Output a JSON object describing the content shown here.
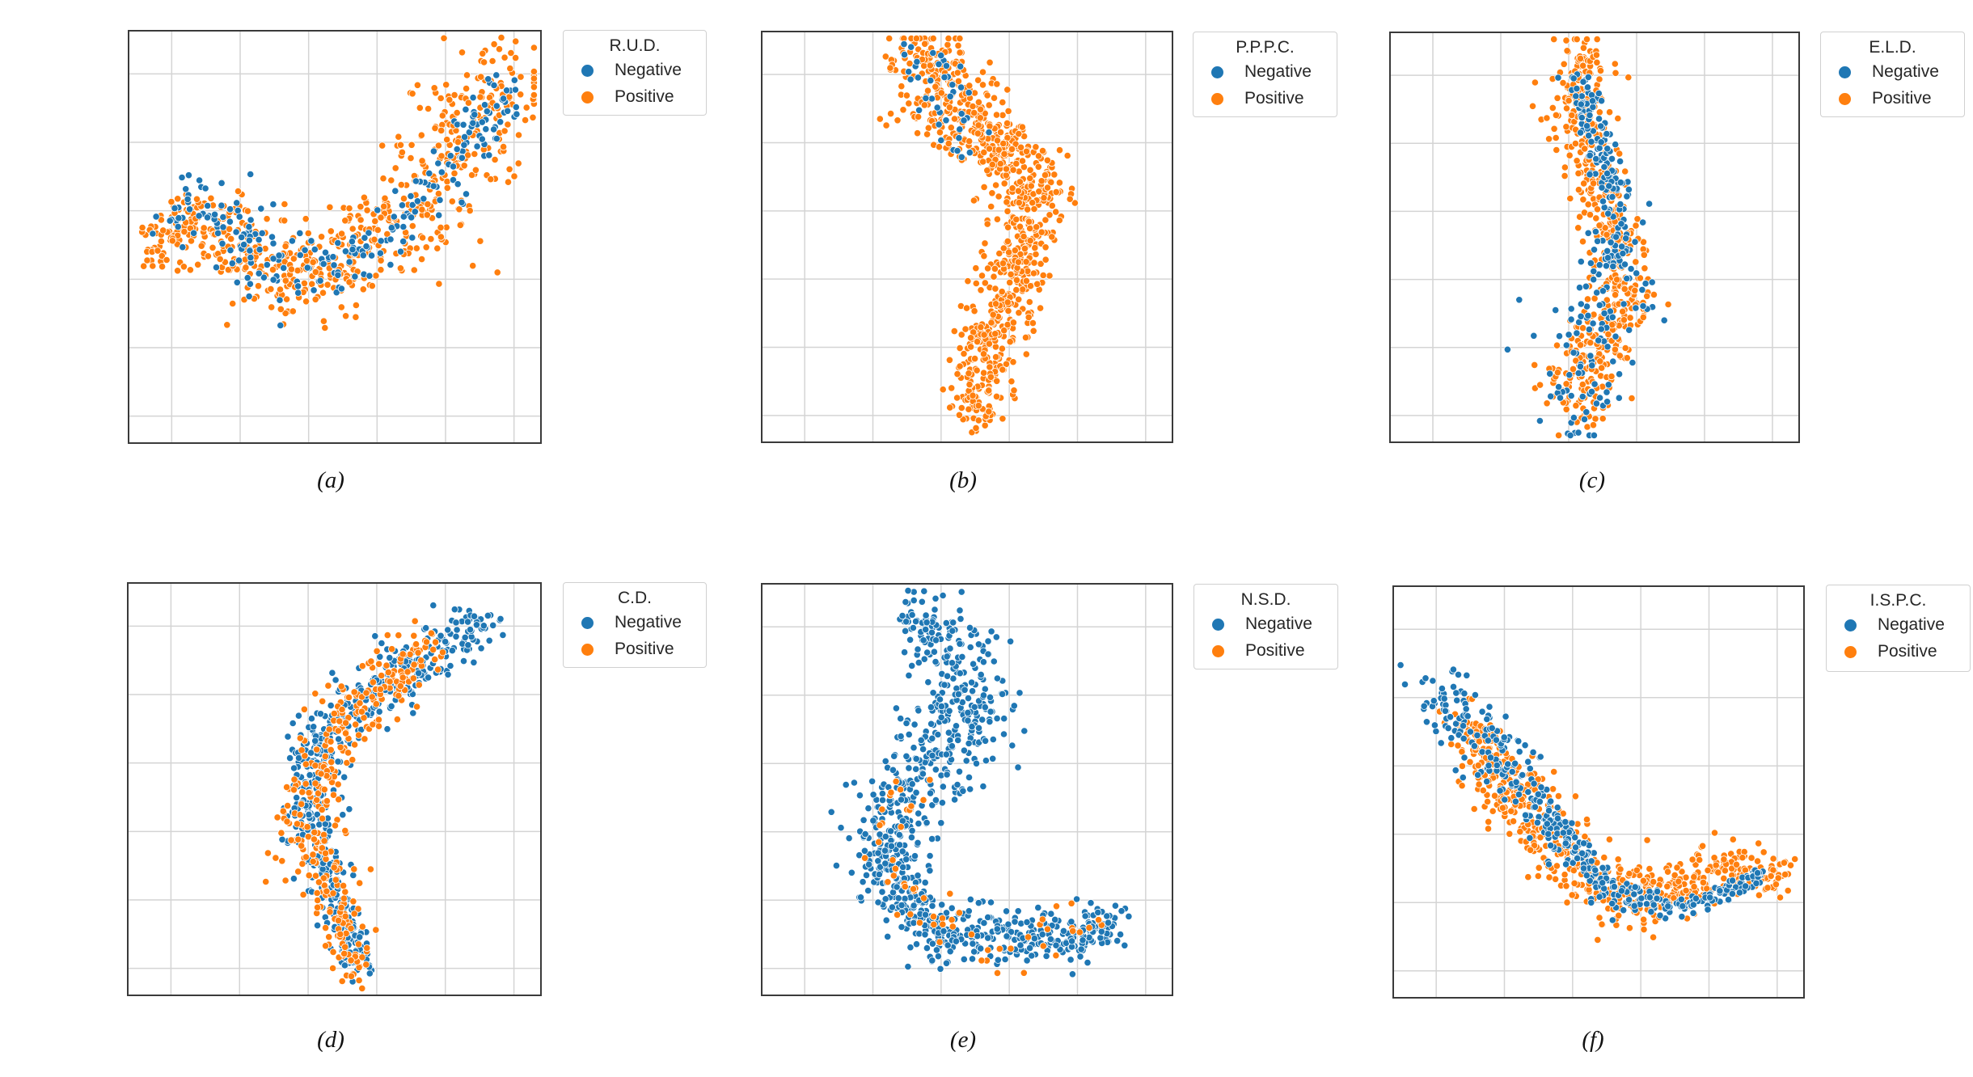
{
  "colors": {
    "negative": "#1f77b4",
    "positive": "#ff7f0e",
    "grid": "#d4d4d4",
    "frame": "#3a3a3a"
  },
  "legend_labels": {
    "negative": "Negative",
    "positive": "Positive"
  },
  "chart_data": [
    {
      "type": "scatter",
      "title": "R.U.D.",
      "caption": "(a)",
      "xlabel": "",
      "ylabel": "",
      "grid": true,
      "legend": "outside-right",
      "series": [
        {
          "name": "Negative",
          "color": "#1f77b4",
          "path": [
            [
              0.06,
              0.5
            ],
            [
              0.16,
              0.4
            ],
            [
              0.3,
              0.54
            ],
            [
              0.45,
              0.6
            ],
            [
              0.62,
              0.5
            ],
            [
              0.8,
              0.32
            ],
            [
              0.92,
              0.14
            ]
          ],
          "widths": [
            0.1,
            0.1,
            0.09,
            0.09,
            0.08,
            0.07,
            0.06
          ],
          "n": 240,
          "seed": 11
        },
        {
          "name": "Positive",
          "color": "#ff7f0e",
          "path": [
            [
              0.06,
              0.52
            ],
            [
              0.18,
              0.46
            ],
            [
              0.32,
              0.56
            ],
            [
              0.48,
              0.6
            ],
            [
              0.64,
              0.48
            ],
            [
              0.8,
              0.3
            ],
            [
              0.93,
              0.1
            ]
          ],
          "widths": [
            0.07,
            0.1,
            0.11,
            0.12,
            0.13,
            0.16,
            0.13
          ],
          "n": 640,
          "seed": 12
        }
      ]
    },
    {
      "type": "scatter",
      "title": "P.P.P.C.",
      "caption": "(b)",
      "xlabel": "",
      "ylabel": "",
      "grid": true,
      "legend": "outside-right",
      "series": [
        {
          "name": "Negative",
          "color": "#1f77b4",
          "path": [
            [
              0.4,
              0.05
            ],
            [
              0.44,
              0.18
            ],
            [
              0.52,
              0.26
            ]
          ],
          "widths": [
            0.08,
            0.09,
            0.05
          ],
          "n": 40,
          "seed": 21
        },
        {
          "name": "Positive",
          "color": "#ff7f0e",
          "path": [
            [
              0.4,
              0.04
            ],
            [
              0.42,
              0.13
            ],
            [
              0.53,
              0.25
            ],
            [
              0.66,
              0.36
            ],
            [
              0.64,
              0.5
            ],
            [
              0.6,
              0.64
            ],
            [
              0.54,
              0.8
            ],
            [
              0.52,
              0.94
            ]
          ],
          "widths": [
            0.08,
            0.13,
            0.09,
            0.09,
            0.08,
            0.07,
            0.08,
            0.06
          ],
          "n": 860,
          "seed": 22
        }
      ]
    },
    {
      "type": "scatter",
      "title": "E.L.D.",
      "caption": "(c)",
      "xlabel": "",
      "ylabel": "",
      "grid": true,
      "legend": "outside-right",
      "series": [
        {
          "name": "Negative",
          "color": "#1f77b4",
          "path": [
            [
              0.46,
              0.1
            ],
            [
              0.52,
              0.3
            ],
            [
              0.56,
              0.46
            ],
            [
              0.54,
              0.62
            ],
            [
              0.48,
              0.76
            ],
            [
              0.46,
              0.92
            ]
          ],
          "widths": [
            0.03,
            0.04,
            0.06,
            0.09,
            0.14,
            0.12
          ],
          "n": 260,
          "seed": 31
        },
        {
          "name": "Positive",
          "color": "#ff7f0e",
          "path": [
            [
              0.47,
              0.04
            ],
            [
              0.45,
              0.16
            ],
            [
              0.5,
              0.3
            ],
            [
              0.53,
              0.46
            ],
            [
              0.58,
              0.62
            ],
            [
              0.5,
              0.78
            ],
            [
              0.45,
              0.92
            ]
          ],
          "widths": [
            0.07,
            0.08,
            0.07,
            0.07,
            0.07,
            0.09,
            0.08
          ],
          "n": 560,
          "seed": 32
        }
      ]
    },
    {
      "type": "scatter",
      "title": "C.D.",
      "caption": "(d)",
      "xlabel": "",
      "ylabel": "",
      "grid": true,
      "legend": "outside-right",
      "series": [
        {
          "name": "Negative",
          "color": "#1f77b4",
          "path": [
            [
              0.86,
              0.1
            ],
            [
              0.72,
              0.18
            ],
            [
              0.56,
              0.28
            ],
            [
              0.45,
              0.4
            ],
            [
              0.44,
              0.6
            ],
            [
              0.51,
              0.8
            ],
            [
              0.56,
              0.94
            ]
          ],
          "widths": [
            0.06,
            0.08,
            0.07,
            0.07,
            0.07,
            0.06,
            0.04
          ],
          "n": 560,
          "seed": 41
        },
        {
          "name": "Positive",
          "color": "#ff7f0e",
          "path": [
            [
              0.74,
              0.14
            ],
            [
              0.56,
              0.3
            ],
            [
              0.45,
              0.46
            ],
            [
              0.44,
              0.64
            ],
            [
              0.52,
              0.82
            ],
            [
              0.56,
              0.94
            ]
          ],
          "widths": [
            0.08,
            0.08,
            0.08,
            0.09,
            0.07,
            0.04
          ],
          "n": 340,
          "seed": 42
        }
      ]
    },
    {
      "type": "scatter",
      "title": "N.S.D.",
      "caption": "(e)",
      "xlabel": "",
      "ylabel": "",
      "grid": true,
      "legend": "outside-right",
      "series": [
        {
          "name": "Negative",
          "color": "#1f77b4",
          "path": [
            [
              0.36,
              0.06
            ],
            [
              0.48,
              0.16
            ],
            [
              0.5,
              0.34
            ],
            [
              0.36,
              0.5
            ],
            [
              0.3,
              0.64
            ],
            [
              0.34,
              0.76
            ],
            [
              0.46,
              0.86
            ],
            [
              0.64,
              0.86
            ],
            [
              0.78,
              0.85
            ],
            [
              0.86,
              0.82
            ]
          ],
          "widths": [
            0.05,
            0.11,
            0.12,
            0.11,
            0.09,
            0.07,
            0.07,
            0.07,
            0.06,
            0.04
          ],
          "n": 900,
          "seed": 51
        },
        {
          "name": "Positive",
          "color": "#ff7f0e",
          "path": [
            [
              0.34,
              0.48
            ],
            [
              0.3,
              0.62
            ],
            [
              0.36,
              0.76
            ],
            [
              0.52,
              0.88
            ],
            [
              0.82,
              0.82
            ]
          ],
          "widths": [
            0.05,
            0.07,
            0.07,
            0.08,
            0.05
          ],
          "n": 60,
          "seed": 52
        }
      ]
    },
    {
      "type": "scatter",
      "title": "I.S.P.C.",
      "caption": "(f)",
      "xlabel": "",
      "ylabel": "",
      "grid": true,
      "legend": "outside-right",
      "series": [
        {
          "name": "Negative",
          "color": "#1f77b4",
          "path": [
            [
              0.08,
              0.24
            ],
            [
              0.2,
              0.34
            ],
            [
              0.3,
              0.46
            ],
            [
              0.42,
              0.62
            ],
            [
              0.56,
              0.76
            ],
            [
              0.72,
              0.78
            ],
            [
              0.9,
              0.7
            ]
          ],
          "widths": [
            0.07,
            0.08,
            0.06,
            0.05,
            0.04,
            0.03,
            0.02
          ],
          "n": 400,
          "seed": 61
        },
        {
          "name": "Positive",
          "color": "#ff7f0e",
          "path": [
            [
              0.16,
              0.32
            ],
            [
              0.28,
              0.48
            ],
            [
              0.42,
              0.66
            ],
            [
              0.56,
              0.76
            ],
            [
              0.72,
              0.72
            ],
            [
              0.84,
              0.68
            ],
            [
              0.95,
              0.7
            ]
          ],
          "widths": [
            0.06,
            0.08,
            0.08,
            0.08,
            0.06,
            0.06,
            0.04
          ],
          "n": 640,
          "seed": 62
        }
      ]
    }
  ]
}
